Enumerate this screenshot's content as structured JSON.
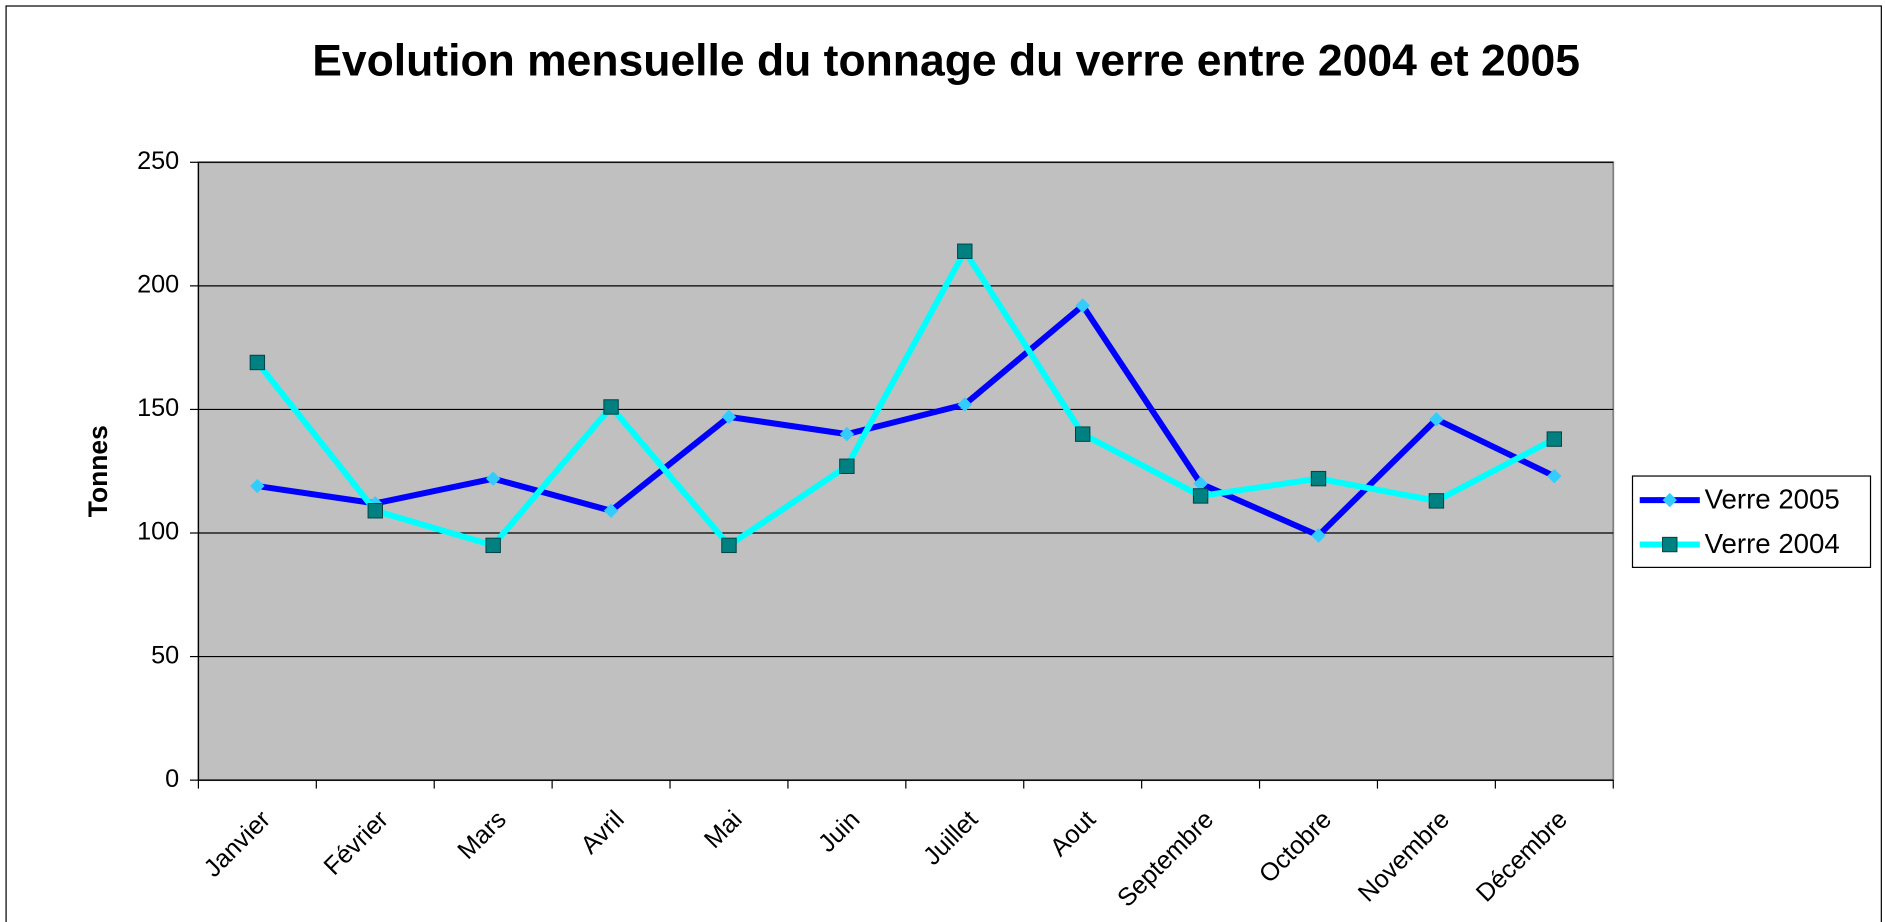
{
  "chart_data": {
    "type": "line",
    "title": "Evolution mensuelle du tonnage du verre entre 2004 et 2005",
    "y_label": "Tonnes",
    "categories": [
      "Janvier",
      "Février",
      "Mars",
      "Avril",
      "Mai",
      "Juin",
      "Juillet",
      "Aout",
      "Septembre",
      "Octobre",
      "Novembre",
      "Décembre"
    ],
    "series": [
      {
        "name": "Verre 2005",
        "color": "#0000ff",
        "marker": "diamond",
        "marker_color": "#33ccff",
        "values": [
          119,
          112,
          122,
          109,
          147,
          140,
          152,
          192,
          120,
          99,
          146,
          123
        ]
      },
      {
        "name": "Verre 2004",
        "color": "#00ffff",
        "marker": "square",
        "marker_color": "#008080",
        "values": [
          169,
          109,
          95,
          151,
          95,
          127,
          214,
          140,
          115,
          122,
          113,
          138
        ]
      }
    ],
    "ylim": [
      0,
      250
    ],
    "yticks": [
      0,
      50,
      100,
      150,
      200,
      250
    ],
    "grid": true,
    "legend": "right",
    "plot_background": "#c0c0c0"
  }
}
